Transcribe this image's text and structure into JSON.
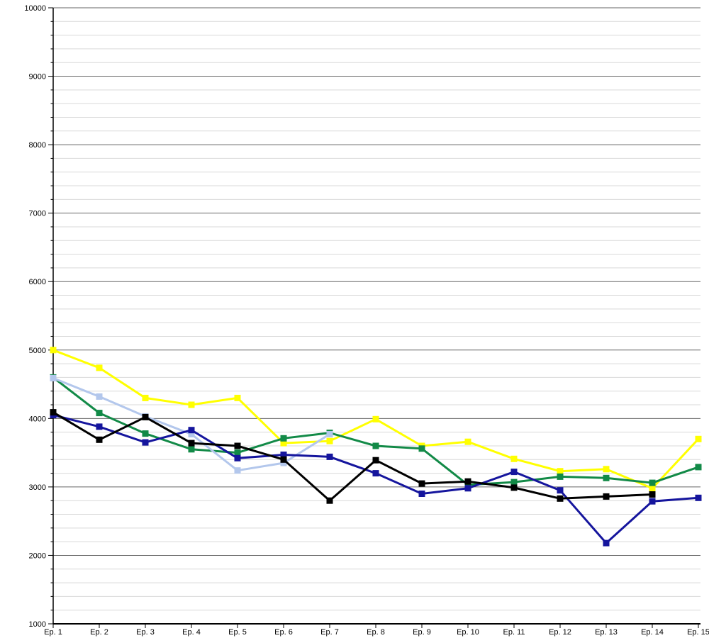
{
  "page": {
    "background": "#ffffff",
    "text_color": "#000000"
  },
  "chart_data": {
    "type": "line",
    "title": "",
    "xlabel": "",
    "ylabel": "",
    "legend": "none",
    "grid": "major+minor",
    "ylim": [
      1000,
      10000
    ],
    "y_major_step": 1000,
    "y_minor_step": 200,
    "y_tick_labels": [
      "10000",
      "9000",
      "8000",
      "7000",
      "6000",
      "5000",
      "4000",
      "3000",
      "2000",
      "1000"
    ],
    "categories": [
      "Ep. 1",
      "Ep. 2",
      "Ep. 3",
      "Ep. 4",
      "Ep. 5",
      "Ep. 6",
      "Ep. 7",
      "Ep. 8",
      "Ep. 9",
      "Ep. 10",
      "Ep. 11",
      "Ep. 12",
      "Ep. 13",
      "Ep. 14",
      "Ep. 15"
    ],
    "series": [
      {
        "name": "yellow",
        "color": "#ffff00",
        "values": [
          5000,
          4740,
          4300,
          4200,
          4300,
          3640,
          3670,
          3990,
          3600,
          3660,
          3410,
          3230,
          3260,
          2980,
          3700
        ]
      },
      {
        "name": "green",
        "color": "#128a47",
        "values": [
          4600,
          4080,
          3780,
          3550,
          3500,
          3710,
          3790,
          3600,
          3560,
          3030,
          3070,
          3150,
          3130,
          3060,
          3290
        ]
      },
      {
        "name": "light-blue",
        "color": "#b3c7ec",
        "values": [
          4590,
          4320,
          4030,
          3770,
          3240,
          3350,
          3770,
          null,
          null,
          null,
          null,
          null,
          null,
          null,
          null
        ]
      },
      {
        "name": "navy",
        "color": "#15159d",
        "values": [
          4050,
          3880,
          3650,
          3830,
          3420,
          3470,
          3440,
          3200,
          2900,
          2980,
          3220,
          2950,
          2180,
          2790,
          2840
        ]
      },
      {
        "name": "black",
        "color": "#000000",
        "values": [
          4090,
          3690,
          4020,
          3640,
          3600,
          3400,
          2800,
          3390,
          3050,
          3080,
          2990,
          2830,
          2860,
          2890,
          null
        ]
      }
    ],
    "colors": {
      "major_grid": "#666666",
      "minor_grid": "#d9d9d9",
      "axis": "#000000"
    }
  }
}
